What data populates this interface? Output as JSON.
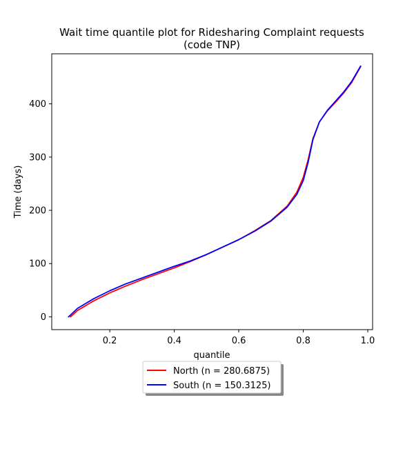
{
  "chart_data": {
    "type": "line",
    "title": "Wait time quantile plot for Ridesharing Complaint  requests",
    "title_line2": "(code TNP)",
    "xlabel": "quantile",
    "ylabel": "Time (days)",
    "xlim": [
      0.02,
      1.015
    ],
    "ylim": [
      -24,
      494
    ],
    "xticks": [
      0.2,
      0.4,
      0.6,
      0.8,
      1.0
    ],
    "xtick_labels": [
      "0.2",
      "0.4",
      "0.6",
      "0.8",
      "1.0"
    ],
    "yticks": [
      0,
      100,
      200,
      300,
      400
    ],
    "ytick_labels": [
      "0",
      "100",
      "200",
      "300",
      "400"
    ],
    "grid": false,
    "legend_position": "below",
    "series": [
      {
        "name": "North (n = 280.6875)",
        "color": "#ff0000",
        "x": [
          0.078,
          0.1,
          0.15,
          0.2,
          0.25,
          0.3,
          0.35,
          0.4,
          0.45,
          0.5,
          0.55,
          0.6,
          0.65,
          0.7,
          0.75,
          0.78,
          0.8,
          0.815,
          0.83,
          0.85,
          0.875,
          0.9,
          0.925,
          0.95,
          0.978
        ],
        "y": [
          0,
          12,
          30,
          45,
          58,
          70,
          81,
          92,
          104,
          117,
          131,
          145,
          162,
          181,
          208,
          234,
          262,
          295,
          335,
          366,
          387,
          403,
          420,
          440,
          470
        ]
      },
      {
        "name": "South (n = 150.3125)",
        "color": "#0000ff",
        "x": [
          0.072,
          0.1,
          0.15,
          0.2,
          0.25,
          0.3,
          0.35,
          0.4,
          0.45,
          0.5,
          0.55,
          0.6,
          0.65,
          0.7,
          0.75,
          0.78,
          0.8,
          0.815,
          0.83,
          0.85,
          0.875,
          0.9,
          0.925,
          0.95,
          0.978
        ],
        "y": [
          0,
          16,
          34,
          49,
          62,
          73,
          84,
          95,
          105,
          117,
          131,
          145,
          161,
          180,
          206,
          230,
          256,
          290,
          333,
          366,
          388,
          405,
          422,
          442,
          471
        ]
      }
    ]
  }
}
